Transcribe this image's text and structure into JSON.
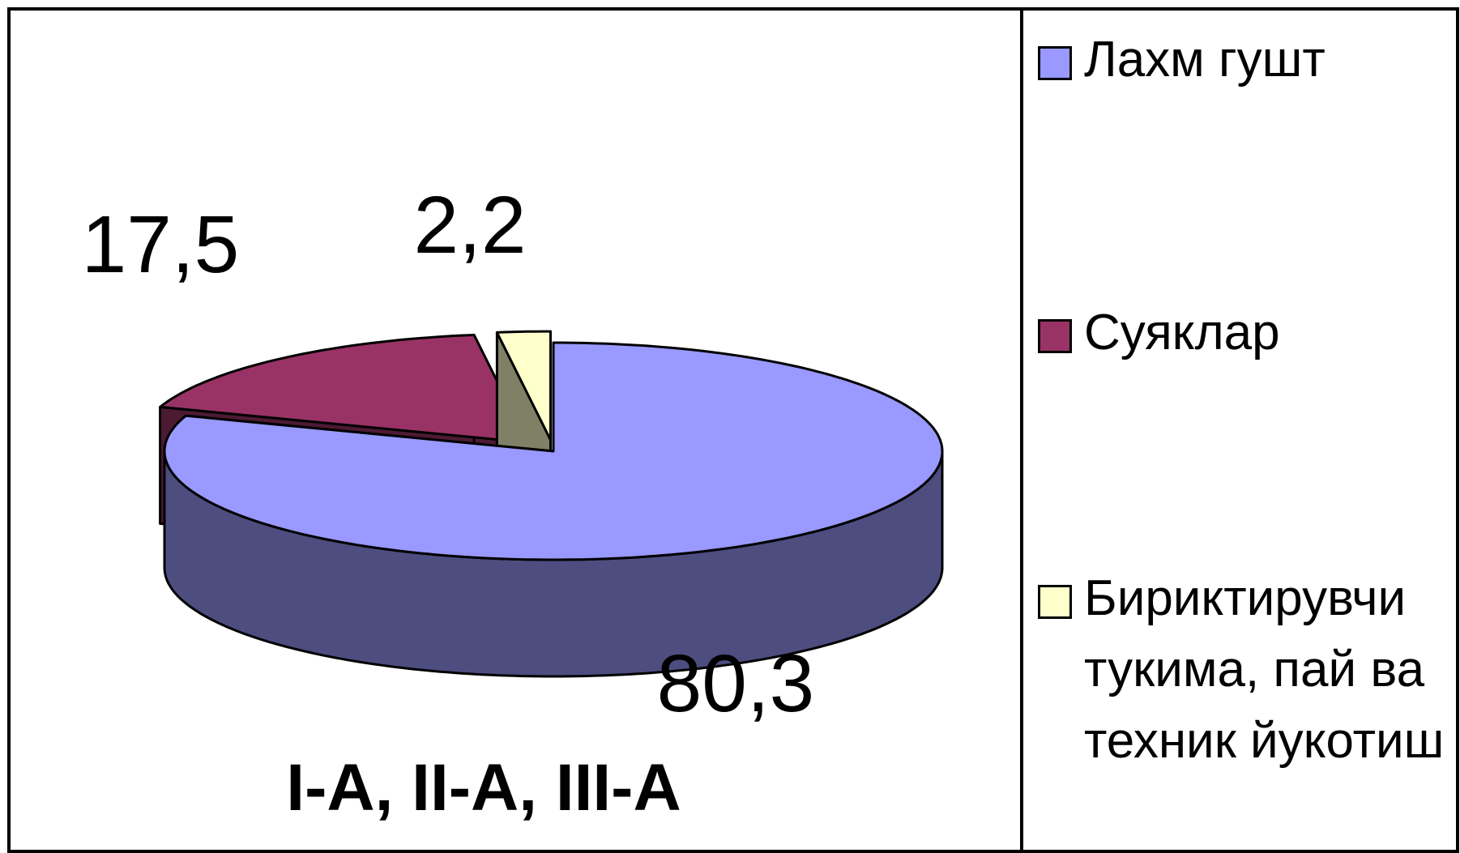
{
  "chart_data": {
    "type": "pie3d",
    "title": "I-A, II-A, III-A",
    "categories": [
      "Лахм гушт",
      "Суяклар",
      "Бириктирувчи тукима, пай ва техник йукотиш"
    ],
    "values": [
      80.3,
      17.5,
      2.2
    ],
    "value_labels": [
      "80,3",
      "17,5",
      "2,2"
    ],
    "colors": [
      "#9999ff",
      "#993366",
      "#ffffcc"
    ],
    "legend": "right"
  }
}
